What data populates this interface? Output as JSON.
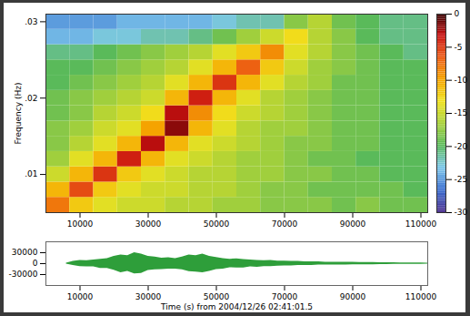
{
  "chart_data": [
    {
      "type": "heatmap",
      "y_label": "Frequency (Hz)",
      "x_edges": [
        0,
        7000,
        14000,
        21000,
        28000,
        35000,
        42000,
        49000,
        56000,
        63000,
        70000,
        77000,
        84000,
        91000,
        98000,
        105000,
        112000
      ],
      "y_edges": [
        0.005,
        0.007,
        0.009,
        0.011,
        0.013,
        0.015,
        0.017,
        0.019,
        0.021,
        0.023,
        0.025,
        0.027,
        0.029,
        0.031
      ],
      "values": [
        [
          -8,
          -12,
          -14,
          -15,
          -15,
          -16,
          -16,
          -17,
          -17,
          -18,
          -18,
          -18,
          -19,
          -18,
          -19,
          -19
        ],
        [
          -11,
          -6,
          -12,
          -14,
          -15,
          -15,
          -16,
          -16,
          -17,
          -18,
          -18,
          -19,
          -19,
          -19,
          -19,
          -20
        ],
        [
          -15,
          -11,
          -5,
          -12,
          -14,
          -15,
          -16,
          -16,
          -17,
          -17,
          -18,
          -18,
          -19,
          -19,
          -20,
          -20
        ],
        [
          -17,
          -14,
          -11,
          -4,
          -11,
          -14,
          -15,
          -16,
          -17,
          -17,
          -18,
          -19,
          -19,
          -20,
          -20,
          -20
        ],
        [
          -18,
          -16,
          -14,
          -11,
          -3,
          -11,
          -14,
          -15,
          -16,
          -17,
          -18,
          -18,
          -19,
          -19,
          -20,
          -20
        ],
        [
          -18,
          -17,
          -15,
          -14,
          -10,
          -2,
          -11,
          -14,
          -16,
          -17,
          -17,
          -18,
          -19,
          -19,
          -20,
          -20
        ],
        [
          -19,
          -18,
          -16,
          -15,
          -13,
          -3,
          -9,
          -13,
          -15,
          -16,
          -17,
          -18,
          -19,
          -19,
          -20,
          -20
        ],
        [
          -19,
          -18,
          -17,
          -16,
          -15,
          -11,
          -4,
          -11,
          -14,
          -16,
          -17,
          -18,
          -19,
          -19,
          -20,
          -20
        ],
        [
          -20,
          -19,
          -18,
          -17,
          -16,
          -14,
          -11,
          -5,
          -11,
          -14,
          -16,
          -17,
          -19,
          -19,
          -20,
          -20
        ],
        [
          -20,
          -20,
          -19,
          -18,
          -17,
          -16,
          -14,
          -11,
          -7,
          -12,
          -15,
          -17,
          -18,
          -19,
          -20,
          -20
        ],
        [
          -21,
          -21,
          -20,
          -19,
          -18,
          -17,
          -16,
          -14,
          -12,
          -9,
          -14,
          -16,
          -18,
          -19,
          -20,
          -21
        ],
        [
          -24,
          -24,
          -23,
          -23,
          -22,
          -22,
          -21,
          -19,
          -17,
          -15,
          -13,
          -16,
          -18,
          -20,
          -21,
          -21
        ],
        [
          -25,
          -25,
          -25,
          -24,
          -24,
          -24,
          -24,
          -23,
          -22,
          -22,
          -18,
          -16,
          -19,
          -20,
          -21,
          -21
        ]
      ],
      "xlim": [
        0,
        112000
      ],
      "xticks": [
        10000,
        30000,
        50000,
        70000,
        90000,
        110000
      ],
      "ylim": [
        0.005,
        0.031
      ],
      "yticks": [
        {
          "value": 0.01,
          "label": ".01"
        },
        {
          "value": 0.02,
          "label": ".02"
        },
        {
          "value": 0.03,
          "label": ".03"
        }
      ],
      "colorbar_lim": [
        -30,
        0
      ],
      "colorbar_ticks": [
        0,
        -5,
        -10,
        -15,
        -20,
        -25,
        -30
      ]
    },
    {
      "type": "area",
      "x_label": "Time (s) from 2004/12/26 02:41:01.5",
      "color": "#2e9e3a",
      "x": [
        6000,
        8000,
        10000,
        12000,
        14000,
        16000,
        18000,
        20000,
        22000,
        24000,
        26000,
        28000,
        30000,
        32000,
        34000,
        36000,
        38000,
        40000,
        42000,
        44000,
        46000,
        48000,
        50000,
        52000,
        54000,
        56000,
        58000,
        60000,
        62000,
        64000,
        66000,
        68000,
        70000,
        72000,
        74000,
        76000,
        78000,
        80000,
        82000,
        84000,
        86000,
        88000,
        90000,
        92000,
        94000,
        96000,
        98000,
        100000,
        102000,
        104000,
        106000,
        108000,
        110000,
        112000
      ],
      "upper": [
        1000,
        6000,
        9000,
        8000,
        10000,
        12000,
        14000,
        20000,
        24000,
        22000,
        30000,
        26000,
        20000,
        18000,
        15000,
        16000,
        14000,
        18000,
        24000,
        22000,
        26000,
        20000,
        17000,
        14000,
        12000,
        13000,
        11000,
        10000,
        9000,
        8000,
        9000,
        7000,
        7000,
        6000,
        6000,
        5000,
        5000,
        5000,
        4000,
        4000,
        4000,
        3500,
        3500,
        3000,
        3000,
        3000,
        2500,
        2500,
        2500,
        2000,
        2000,
        2000,
        2000,
        1500
      ],
      "lower": [
        -1000,
        -5000,
        -8000,
        -9000,
        -9000,
        -13000,
        -13000,
        -18000,
        -25000,
        -21000,
        -28000,
        -27000,
        -19000,
        -17000,
        -16000,
        -15000,
        -15000,
        -17000,
        -22000,
        -23000,
        -25000,
        -21000,
        -16000,
        -15000,
        -11000,
        -12000,
        -12000,
        -9000,
        -10000,
        -8000,
        -8000,
        -7000,
        -6000,
        -6000,
        -5000,
        -5000,
        -5000,
        -4000,
        -4000,
        -4000,
        -3500,
        -3500,
        -3000,
        -3000,
        -3000,
        -3000,
        -2500,
        -2500,
        -2000,
        -2000,
        -2000,
        -2000,
        -2000,
        -1500
      ],
      "xlim": [
        0,
        112000
      ],
      "xticks": [
        10000,
        30000,
        50000,
        70000,
        90000,
        110000
      ],
      "ylim": [
        -60000,
        60000
      ],
      "yticks": [
        -30000,
        0,
        30000
      ]
    }
  ]
}
